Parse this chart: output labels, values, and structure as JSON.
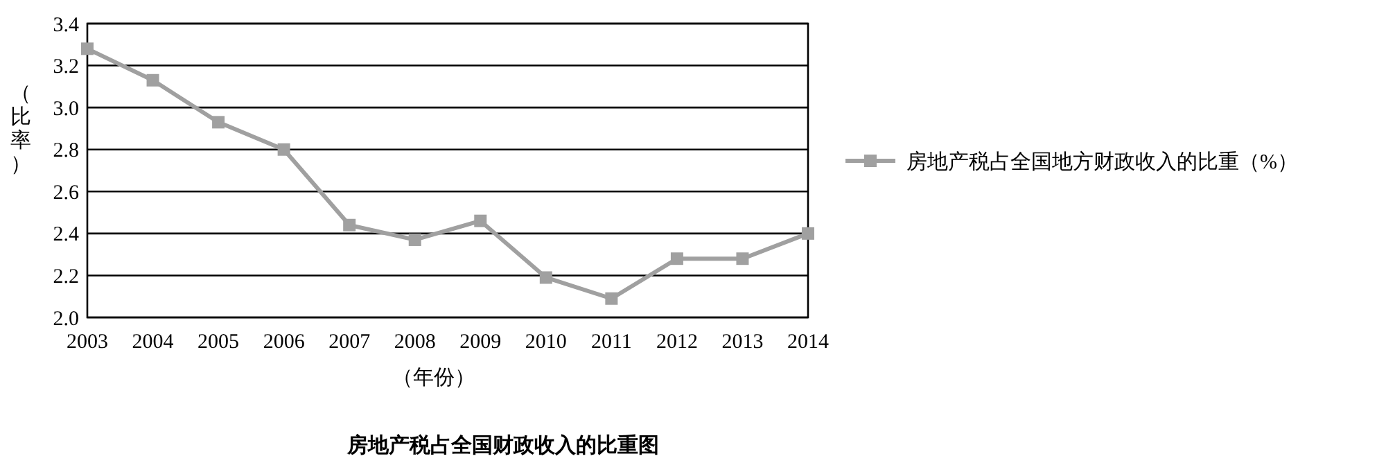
{
  "chart_data": {
    "type": "line",
    "title": "房地产税占全国财政收入的比重图",
    "xlabel": "（年份）",
    "ylabel": "（比率）",
    "categories": [
      "2003",
      "2004",
      "2005",
      "2006",
      "2007",
      "2008",
      "2009",
      "2010",
      "2011",
      "2012",
      "2013",
      "2014"
    ],
    "series": [
      {
        "name": "房地产税占全国地方财政收入的比重（%）",
        "color": "#a0a0a0",
        "values": [
          3.28,
          3.13,
          2.93,
          2.8,
          2.44,
          2.37,
          2.46,
          2.19,
          2.09,
          2.28,
          2.28,
          2.4
        ]
      }
    ],
    "ylim": [
      2.0,
      3.4
    ],
    "yticks": [
      {
        "value": 2.0,
        "label": "2.0"
      },
      {
        "value": 2.2,
        "label": "2.2"
      },
      {
        "value": 2.4,
        "label": "2.4"
      },
      {
        "value": 2.6,
        "label": "2.6"
      },
      {
        "value": 2.8,
        "label": "2.8"
      },
      {
        "value": 3.0,
        "label": "3.0"
      },
      {
        "value": 3.2,
        "label": "3.2"
      },
      {
        "value": 3.4,
        "label": "3.4"
      }
    ],
    "grid": "y",
    "legend": "right",
    "marker": "square",
    "line_style": "solid"
  }
}
